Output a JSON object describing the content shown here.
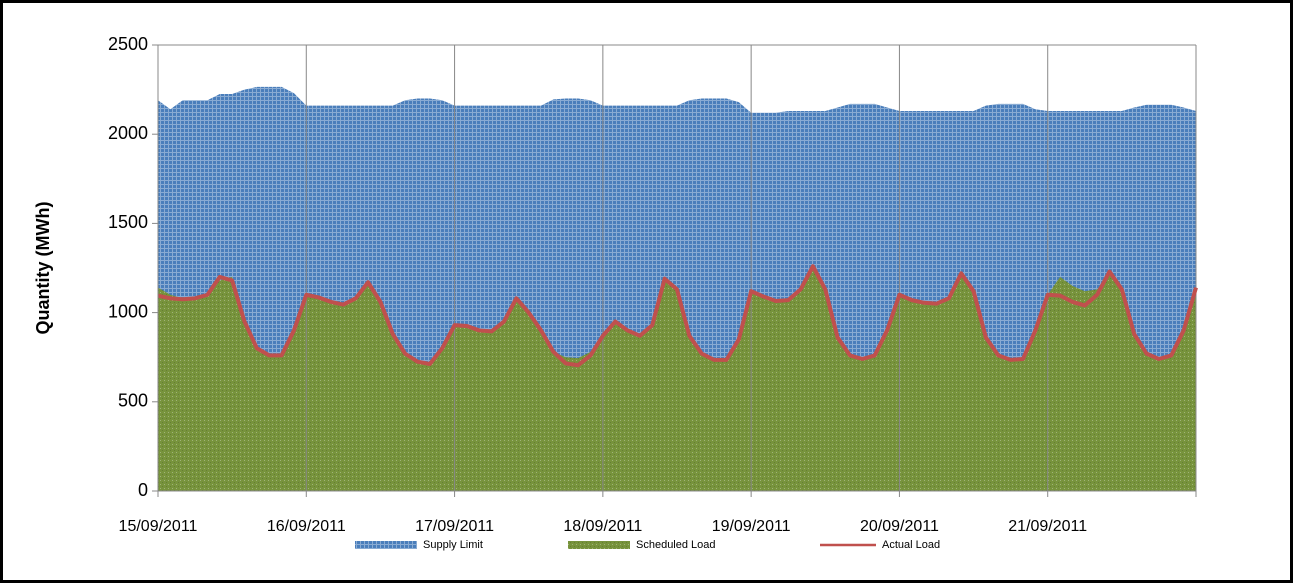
{
  "chart_data": {
    "type": "area",
    "y_label": "Quantity (MWh)",
    "categories": [
      "15/09/2011",
      null,
      null,
      null,
      null,
      null,
      null,
      null,
      null,
      null,
      null,
      null,
      "16/09/2011",
      null,
      null,
      null,
      null,
      null,
      null,
      null,
      null,
      null,
      null,
      null,
      "17/09/2011",
      null,
      null,
      null,
      null,
      null,
      null,
      null,
      null,
      null,
      null,
      null,
      "18/09/2011",
      null,
      null,
      null,
      null,
      null,
      null,
      null,
      null,
      null,
      null,
      null,
      "19/09/2011",
      null,
      null,
      null,
      null,
      null,
      null,
      null,
      null,
      null,
      null,
      null,
      "20/09/2011",
      null,
      null,
      null,
      null,
      null,
      null,
      null,
      null,
      null,
      null,
      null,
      "21/09/2011",
      null,
      null,
      null,
      null,
      null,
      null,
      null,
      null,
      null,
      null,
      null,
      null
    ],
    "series": [
      {
        "name": "Supply Limit",
        "type": "area",
        "color": "#4a7ebb",
        "values": [
          2190,
          2140,
          2190,
          2190,
          2190,
          2225,
          2225,
          2250,
          2265,
          2265,
          2265,
          2230,
          2160,
          2160,
          2160,
          2160,
          2160,
          2160,
          2160,
          2160,
          2190,
          2200,
          2200,
          2190,
          2160,
          2160,
          2160,
          2160,
          2160,
          2160,
          2160,
          2160,
          2195,
          2200,
          2200,
          2190,
          2160,
          2160,
          2160,
          2160,
          2160,
          2160,
          2160,
          2190,
          2200,
          2200,
          2200,
          2180,
          2120,
          2120,
          2120,
          2130,
          2130,
          2130,
          2130,
          2150,
          2170,
          2170,
          2170,
          2150,
          2130,
          2130,
          2130,
          2130,
          2130,
          2130,
          2130,
          2160,
          2170,
          2170,
          2170,
          2140,
          2130,
          2130,
          2130,
          2130,
          2130,
          2130,
          2130,
          2150,
          2165,
          2165,
          2165,
          2150,
          2130
        ]
      },
      {
        "name": "Scheduled Load",
        "type": "area",
        "color": "#77933c",
        "values": [
          1140,
          1100,
          1080,
          1080,
          1100,
          1180,
          1200,
          950,
          800,
          760,
          760,
          900,
          1100,
          1085,
          1060,
          1045,
          1080,
          1160,
          1060,
          880,
          770,
          730,
          720,
          800,
          930,
          925,
          900,
          895,
          950,
          1070,
          1000,
          900,
          780,
          750,
          745,
          780,
          880,
          950,
          910,
          880,
          930,
          1180,
          1120,
          870,
          770,
          735,
          735,
          850,
          1120,
          1090,
          1065,
          1070,
          1130,
          1250,
          1130,
          860,
          760,
          740,
          760,
          900,
          1100,
          1070,
          1055,
          1050,
          1080,
          1210,
          1120,
          860,
          760,
          735,
          740,
          900,
          1100,
          1200,
          1150,
          1120,
          1130,
          1220,
          1130,
          880,
          770,
          740,
          760,
          900,
          1130
        ]
      },
      {
        "name": "Actual Load",
        "type": "line",
        "color": "#c0504d",
        "values": [
          1095,
          1080,
          1075,
          1080,
          1100,
          1200,
          1180,
          950,
          800,
          760,
          760,
          900,
          1100,
          1085,
          1060,
          1045,
          1080,
          1170,
          1060,
          880,
          770,
          725,
          712,
          800,
          930,
          925,
          900,
          895,
          950,
          1080,
          1000,
          900,
          780,
          715,
          705,
          760,
          870,
          950,
          900,
          870,
          930,
          1190,
          1130,
          870,
          770,
          735,
          735,
          850,
          1120,
          1090,
          1065,
          1070,
          1130,
          1260,
          1130,
          860,
          760,
          740,
          760,
          900,
          1100,
          1070,
          1055,
          1050,
          1080,
          1220,
          1120,
          860,
          760,
          735,
          740,
          900,
          1100,
          1095,
          1060,
          1040,
          1100,
          1230,
          1130,
          880,
          770,
          740,
          760,
          900,
          1140
        ]
      }
    ],
    "ylim": [
      0,
      2500
    ],
    "yticks": [
      0,
      500,
      1000,
      1500,
      2000,
      2500
    ],
    "grid": false,
    "xgrid": true,
    "legend": "bottom"
  }
}
